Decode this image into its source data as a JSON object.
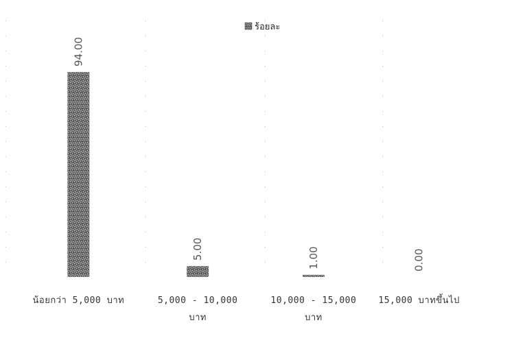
{
  "chart_data": {
    "type": "bar",
    "categories": [
      [
        "น้อยกว่า 5,000 บาท"
      ],
      [
        "5,000 - 10,000",
        "บาท"
      ],
      [
        "10,000 - 15,000",
        "บาท"
      ],
      [
        "15,000 บาทขึ้นไป"
      ]
    ],
    "series": [
      {
        "name": "ร้อยละ",
        "values": [
          94.0,
          5.0,
          1.0,
          0.0
        ],
        "color": "#5a5a5a"
      }
    ],
    "data_labels": [
      "94.00",
      "5.00",
      "1.00",
      "0.00"
    ],
    "ylim": [
      0,
      100
    ],
    "legend_position": "top",
    "grid": "dotted"
  }
}
